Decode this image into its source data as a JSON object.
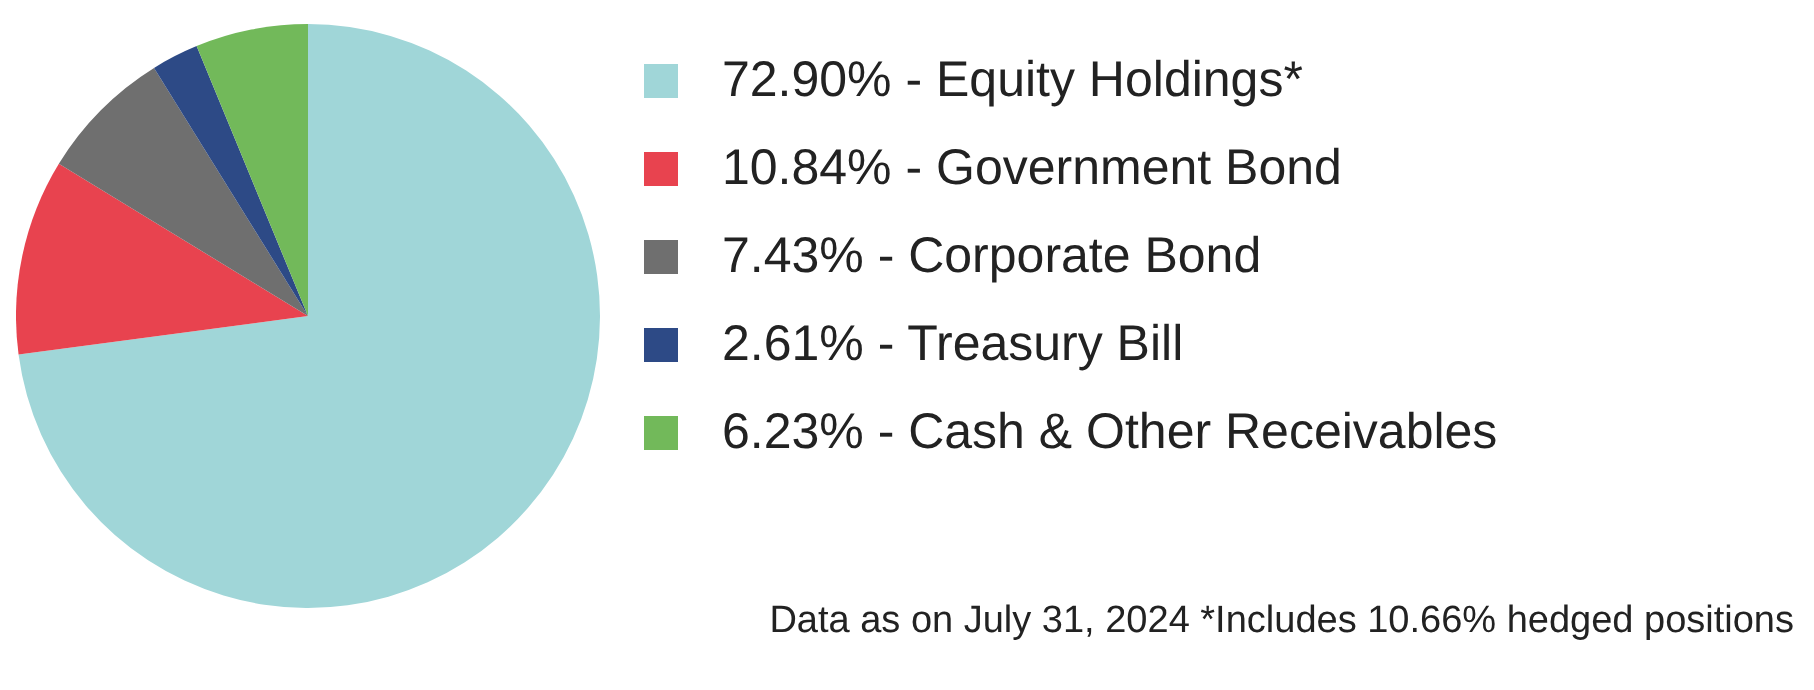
{
  "chart_data": {
    "type": "pie",
    "categories": [
      "Equity Holdings*",
      "Government Bond",
      "Corporate Bond",
      "Treasury Bill",
      "Cash & Other Receivables"
    ],
    "values": [
      72.9,
      10.84,
      7.43,
      2.61,
      6.23
    ],
    "value_labels": [
      "72.90%",
      "10.84%",
      "7.43%",
      "2.61%",
      "6.23%"
    ],
    "colors": [
      "#a0d6d8",
      "#e8434f",
      "#6f6f6f",
      "#2d4a86",
      "#72b95a"
    ],
    "legend": "right",
    "annotations": [
      "Data as on July 31, 2024 *Includes 10.66% hedged positions"
    ]
  }
}
